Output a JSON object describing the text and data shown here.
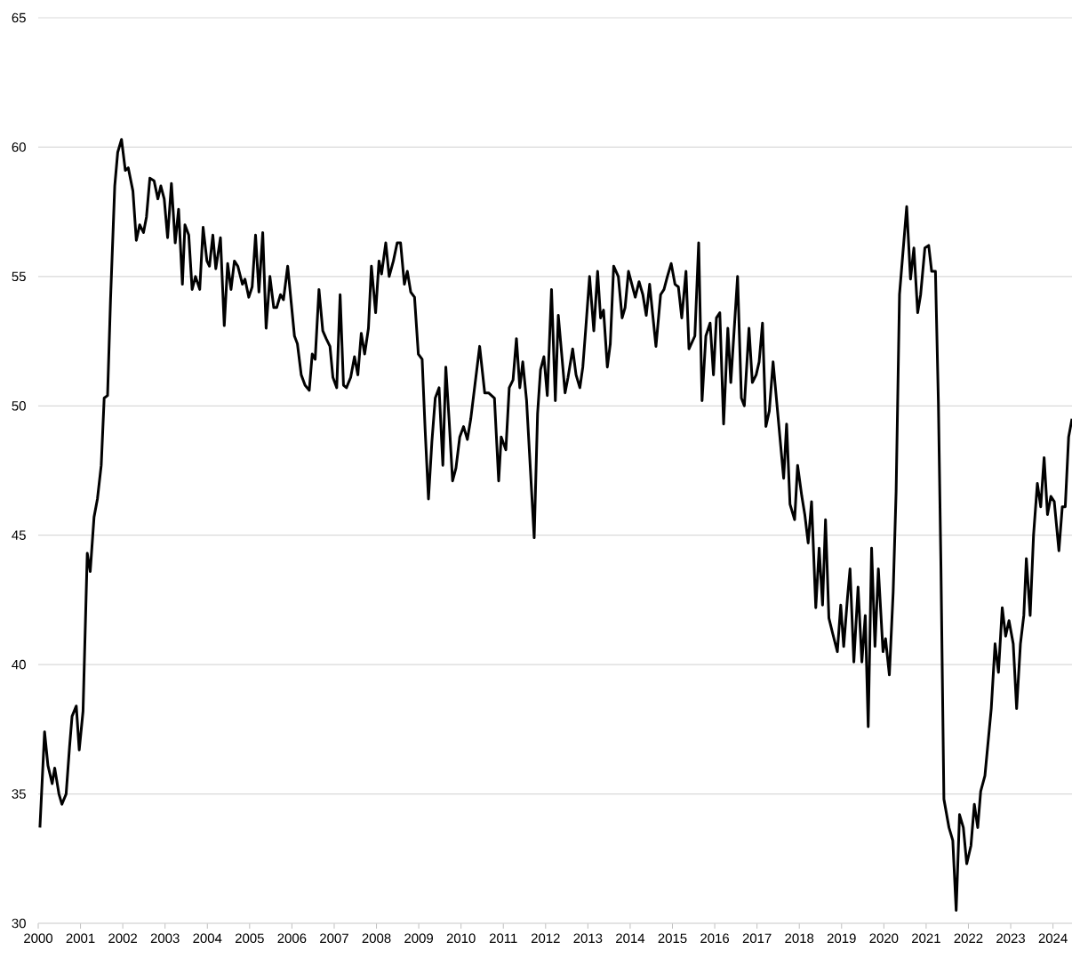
{
  "chart_data": {
    "type": "line",
    "x": [
      2000.04,
      2000.15,
      2000.23,
      2000.33,
      2000.39,
      2000.49,
      2000.56,
      2000.66,
      2000.74,
      2000.8,
      2000.9,
      2000.97,
      2001.06,
      2001.16,
      2001.23,
      2001.32,
      2001.4,
      2001.49,
      2001.56,
      2001.64,
      2001.71,
      2001.81,
      2001.88,
      2001.97,
      2002.06,
      2002.13,
      2002.24,
      2002.32,
      2002.4,
      2002.49,
      2002.56,
      2002.64,
      2002.74,
      2002.83,
      2002.9,
      2002.98,
      2003.06,
      2003.15,
      2003.24,
      2003.32,
      2003.41,
      2003.47,
      2003.56,
      2003.64,
      2003.72,
      2003.82,
      2003.9,
      2003.99,
      2004.05,
      2004.13,
      2004.2,
      2004.31,
      2004.4,
      2004.48,
      2004.56,
      2004.64,
      2004.72,
      2004.83,
      2004.89,
      2004.98,
      2005.06,
      2005.14,
      2005.22,
      2005.31,
      2005.39,
      2005.48,
      2005.57,
      2005.64,
      2005.73,
      2005.8,
      2005.9,
      2006.06,
      2006.13,
      2006.22,
      2006.31,
      2006.41,
      2006.48,
      2006.55,
      2006.64,
      2006.73,
      2006.81,
      2006.9,
      2006.97,
      2007.06,
      2007.14,
      2007.22,
      2007.29,
      2007.39,
      2007.48,
      2007.56,
      2007.64,
      2007.72,
      2007.81,
      2007.88,
      2007.98,
      2008.06,
      2008.12,
      2008.22,
      2008.3,
      2008.4,
      2008.49,
      2008.57,
      2008.66,
      2008.73,
      2008.81,
      2008.9,
      2008.99,
      2009.08,
      2009.15,
      2009.23,
      2009.31,
      2009.39,
      2009.48,
      2009.57,
      2009.64,
      2009.72,
      2009.8,
      2009.88,
      2009.97,
      2010.06,
      2010.15,
      2010.23,
      2010.44,
      2010.56,
      2010.65,
      2010.79,
      2010.89,
      2010.95,
      2011.06,
      2011.14,
      2011.23,
      2011.31,
      2011.39,
      2011.46,
      2011.55,
      2011.73,
      2011.81,
      2011.88,
      2011.96,
      2012.04,
      2012.14,
      2012.23,
      2012.3,
      2012.37,
      2012.46,
      2012.53,
      2012.64,
      2012.72,
      2012.81,
      2012.88,
      2012.95,
      2013.04,
      2013.14,
      2013.23,
      2013.3,
      2013.37,
      2013.46,
      2013.53,
      2013.61,
      2013.72,
      2013.81,
      2013.88,
      2013.96,
      2014.12,
      2014.21,
      2014.3,
      2014.38,
      2014.46,
      2014.61,
      2014.72,
      2014.8,
      2014.88,
      2014.97,
      2015.06,
      2015.14,
      2015.22,
      2015.32,
      2015.39,
      2015.53,
      2015.62,
      2015.7,
      2015.79,
      2015.89,
      2015.97,
      2016.04,
      2016.12,
      2016.21,
      2016.31,
      2016.38,
      2016.54,
      2016.63,
      2016.7,
      2016.81,
      2016.89,
      2016.98,
      2017.05,
      2017.13,
      2017.21,
      2017.29,
      2017.38,
      2017.63,
      2017.7,
      2017.78,
      2017.89,
      2017.96,
      2018.06,
      2018.13,
      2018.21,
      2018.29,
      2018.39,
      2018.47,
      2018.55,
      2018.62,
      2018.7,
      2018.79,
      2018.9,
      2018.98,
      2019.05,
      2019.14,
      2019.2,
      2019.29,
      2019.39,
      2019.48,
      2019.56,
      2019.63,
      2019.71,
      2019.79,
      2019.87,
      2019.98,
      2020.04,
      2020.13,
      2020.22,
      2020.29,
      2020.37,
      2020.54,
      2020.63,
      2020.71,
      2020.8,
      2020.87,
      2020.97,
      2021.06,
      2021.13,
      2021.22,
      2021.29,
      2021.35,
      2021.42,
      2021.54,
      2021.63,
      2021.71,
      2021.79,
      2021.88,
      2021.96,
      2022.06,
      2022.14,
      2022.22,
      2022.29,
      2022.39,
      2022.54,
      2022.63,
      2022.71,
      2022.8,
      2022.88,
      2022.96,
      2023.06,
      2023.14,
      2023.23,
      2023.31,
      2023.37,
      2023.46,
      2023.54,
      2023.63,
      2023.71,
      2023.79,
      2023.87,
      2023.95,
      2024.03,
      2024.14,
      2024.22,
      2024.29,
      2024.37,
      2024.45
    ],
    "series": [
      {
        "color": "#000000",
        "values": [
          33.7,
          37.4,
          36.1,
          35.4,
          36.0,
          35.0,
          34.6,
          35.0,
          36.8,
          38.0,
          38.4,
          36.7,
          38.2,
          44.3,
          43.6,
          45.7,
          46.4,
          47.7,
          50.3,
          50.4,
          54.1,
          58.5,
          59.8,
          60.3,
          59.1,
          59.2,
          58.3,
          56.4,
          57.0,
          56.7,
          57.3,
          58.8,
          58.7,
          58.0,
          58.5,
          58.0,
          56.5,
          58.6,
          56.3,
          57.6,
          54.7,
          57.0,
          56.6,
          54.5,
          55.0,
          54.5,
          56.9,
          55.6,
          55.4,
          56.6,
          55.3,
          56.5,
          53.1,
          55.5,
          54.5,
          55.6,
          55.4,
          54.7,
          54.9,
          54.2,
          54.6,
          56.6,
          54.4,
          56.7,
          53.0,
          55.0,
          53.8,
          53.8,
          54.3,
          54.1,
          55.4,
          52.7,
          52.4,
          51.2,
          50.8,
          50.6,
          52.0,
          51.8,
          54.5,
          52.9,
          52.6,
          52.3,
          51.1,
          50.7,
          54.3,
          50.8,
          50.7,
          51.1,
          51.9,
          51.2,
          52.8,
          52.0,
          53.0,
          55.4,
          53.6,
          55.6,
          55.1,
          56.3,
          55.0,
          55.6,
          56.3,
          56.3,
          54.7,
          55.2,
          54.4,
          54.2,
          52.0,
          51.8,
          49.1,
          46.4,
          48.6,
          50.3,
          50.7,
          47.7,
          51.5,
          49.4,
          47.1,
          47.6,
          48.8,
          49.2,
          48.7,
          49.5,
          52.3,
          50.5,
          50.5,
          50.3,
          47.1,
          48.8,
          48.3,
          50.7,
          51.0,
          52.6,
          50.7,
          51.7,
          50.2,
          44.9,
          49.7,
          51.4,
          51.9,
          50.4,
          54.5,
          50.2,
          53.5,
          52.2,
          50.5,
          51.1,
          52.2,
          51.2,
          50.7,
          51.5,
          53.0,
          55.0,
          52.9,
          55.2,
          53.4,
          53.7,
          51.5,
          52.4,
          55.4,
          55.0,
          53.4,
          53.8,
          55.2,
          54.2,
          54.8,
          54.3,
          53.5,
          54.7,
          52.3,
          54.3,
          54.5,
          55.0,
          55.5,
          54.7,
          54.6,
          53.4,
          55.2,
          52.2,
          52.7,
          56.3,
          50.2,
          52.7,
          53.2,
          51.2,
          53.4,
          53.6,
          49.3,
          53.0,
          50.9,
          55.0,
          50.3,
          50.0,
          53.0,
          50.9,
          51.2,
          51.7,
          53.2,
          49.2,
          49.8,
          51.7,
          47.2,
          49.3,
          46.2,
          45.6,
          47.7,
          46.5,
          45.8,
          44.7,
          46.3,
          42.2,
          44.5,
          42.3,
          45.6,
          41.8,
          41.2,
          40.5,
          42.3,
          40.7,
          42.6,
          43.7,
          40.1,
          43.0,
          40.1,
          41.9,
          37.6,
          44.5,
          40.7,
          43.7,
          40.5,
          41.0,
          39.6,
          42.8,
          46.7,
          54.3,
          57.7,
          54.9,
          56.1,
          53.6,
          54.3,
          56.1,
          56.2,
          55.2,
          55.2,
          50.1,
          43.8,
          34.8,
          33.7,
          33.2,
          30.5,
          34.2,
          33.7,
          32.3,
          33.0,
          34.6,
          33.7,
          35.1,
          35.7,
          38.3,
          40.8,
          39.7,
          42.2,
          41.1,
          41.7,
          40.8,
          38.3,
          40.8,
          41.9,
          44.1,
          41.9,
          45.0,
          47.0,
          46.1,
          48.0,
          45.8,
          46.5,
          46.3,
          44.4,
          46.1,
          46.1,
          48.8,
          49.5
        ]
      }
    ],
    "xlim": [
      2000,
      2024.45
    ],
    "xticks": [
      2000,
      2001,
      2002,
      2003,
      2004,
      2005,
      2006,
      2007,
      2008,
      2009,
      2010,
      2011,
      2012,
      2013,
      2014,
      2015,
      2016,
      2017,
      2018,
      2019,
      2020,
      2021,
      2022,
      2023,
      2024
    ],
    "ylim": [
      30,
      65
    ],
    "yticks": [
      30,
      35,
      40,
      45,
      50,
      55,
      60,
      65
    ],
    "grid": "y"
  }
}
